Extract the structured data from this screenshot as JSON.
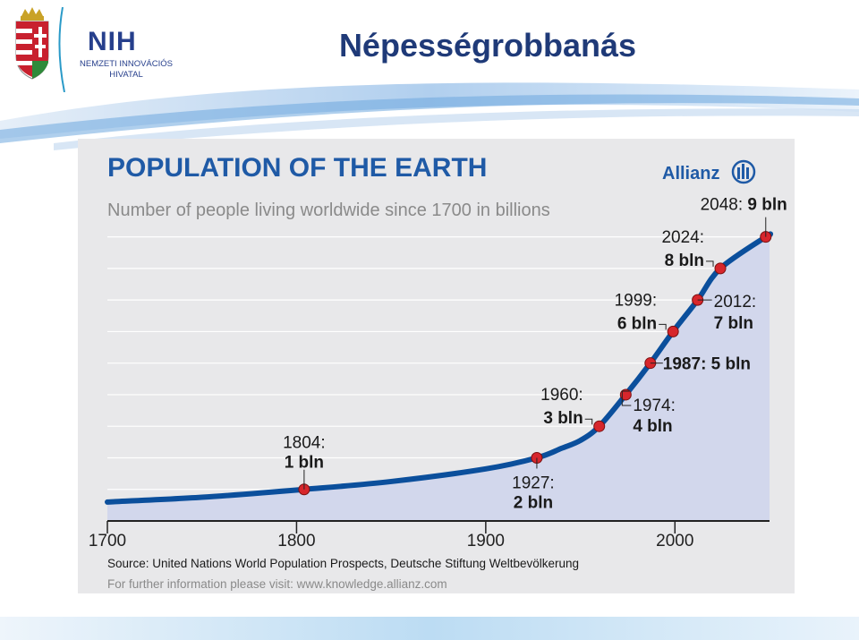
{
  "slide": {
    "title": "Népességrobbanás",
    "logo": {
      "name": "NIH",
      "line1": "NEMZETI INNOVÁCIÓS",
      "line2": "HIVATAL"
    }
  },
  "chart_data": {
    "type": "area",
    "title": "POPULATION OF THE EARTH",
    "subtitle": "Number of people living worldwide since 1700 in billions",
    "brand": "Allianz",
    "xlim": [
      1700,
      2050
    ],
    "ylim": [
      0,
      9.5
    ],
    "x_ticks": [
      "1700",
      "1800",
      "1900",
      "2000"
    ],
    "x_tick_values": [
      1700,
      1800,
      1900,
      2000
    ],
    "grid": true,
    "series": [
      {
        "x": [
          1700,
          1750,
          1804,
          1850,
          1900,
          1927,
          1940,
          1950,
          1960,
          1974,
          1987,
          1999,
          2012,
          2024,
          2048,
          2050
        ],
        "values": [
          0.6,
          0.75,
          1,
          1.25,
          1.65,
          2,
          2.3,
          2.55,
          3,
          4,
          5,
          6,
          7,
          8,
          9,
          9.05
        ]
      }
    ],
    "milestones": [
      {
        "x": 1804,
        "y": 1,
        "year": "1804:",
        "value": "1 bln"
      },
      {
        "x": 1927,
        "y": 2,
        "year": "1927:",
        "value": "2 bln"
      },
      {
        "x": 1960,
        "y": 3,
        "year": "1960:",
        "value": "3 bln"
      },
      {
        "x": 1974,
        "y": 4,
        "year": "1974:",
        "value": "4 bln"
      },
      {
        "x": 1987,
        "y": 5,
        "year": "1987:",
        "value": "5 bln"
      },
      {
        "x": 1999,
        "y": 6,
        "year": "1999:",
        "value": "6 bln"
      },
      {
        "x": 2012,
        "y": 7,
        "year": "2012:",
        "value": "7 bln"
      },
      {
        "x": 2024,
        "y": 8,
        "year": "2024:",
        "value": "8 bln"
      },
      {
        "x": 2048,
        "y": 9,
        "year": "2048:",
        "value": "9 bln"
      }
    ],
    "source": "Source: United Nations World Population Prospects, Deutsche Stiftung Weltbevölkerung",
    "further_info": "For further information please visit: www.knowledge.allianz.com",
    "colors": {
      "line": "#0b4f9c",
      "area": "#d2d7ec",
      "marker": "#d7262c",
      "title": "#1f5aa6",
      "subtitle": "#8a8a8a",
      "grid": "#ffffff",
      "background": "#e8e8ea"
    }
  }
}
